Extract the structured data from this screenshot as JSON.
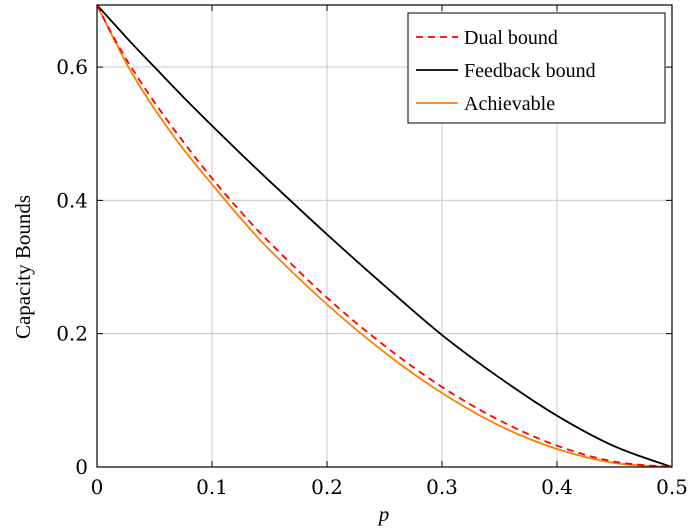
{
  "chart_data": {
    "type": "line",
    "title": "",
    "xlabel": "p",
    "ylabel": "Capacity Bounds",
    "xlim": [
      0,
      0.5
    ],
    "ylim": [
      0,
      0.6931
    ],
    "grid": true,
    "legend_position": "top-right",
    "xticks": [
      0,
      0.1,
      0.2,
      0.3,
      0.4,
      0.5
    ],
    "xtick_labels": [
      "0",
      "0.1",
      "0.2",
      "0.3",
      "0.4",
      "0.5"
    ],
    "yticks": [
      0,
      0.2,
      0.4,
      0.6
    ],
    "ytick_labels": [
      "0",
      "0.2",
      "0.4",
      "0.6"
    ],
    "x": [
      0,
      0.01,
      0.02,
      0.03,
      0.05,
      0.075,
      0.1,
      0.125,
      0.15,
      0.2,
      0.25,
      0.3,
      0.35,
      0.4,
      0.45,
      0.5
    ],
    "series": [
      {
        "name": "Dual bound",
        "color": "#ff0000",
        "style": "dashed",
        "values": [
          0.693,
          0.659,
          0.628,
          0.599,
          0.547,
          0.488,
          0.433,
          0.383,
          0.337,
          0.254,
          0.182,
          0.12,
          0.07,
          0.032,
          0.008,
          0
        ]
      },
      {
        "name": "Feedback bound",
        "color": "#000000",
        "style": "solid",
        "values": [
          0.693,
          0.674,
          0.655,
          0.636,
          0.6,
          0.555,
          0.512,
          0.47,
          0.429,
          0.349,
          0.272,
          0.198,
          0.134,
          0.077,
          0.031,
          0
        ]
      },
      {
        "name": "Achievable",
        "color": "#ff8000",
        "style": "solid",
        "values": [
          0.693,
          0.658,
          0.624,
          0.592,
          0.537,
          0.477,
          0.424,
          0.373,
          0.326,
          0.244,
          0.172,
          0.111,
          0.062,
          0.027,
          0.006,
          0
        ]
      }
    ]
  }
}
